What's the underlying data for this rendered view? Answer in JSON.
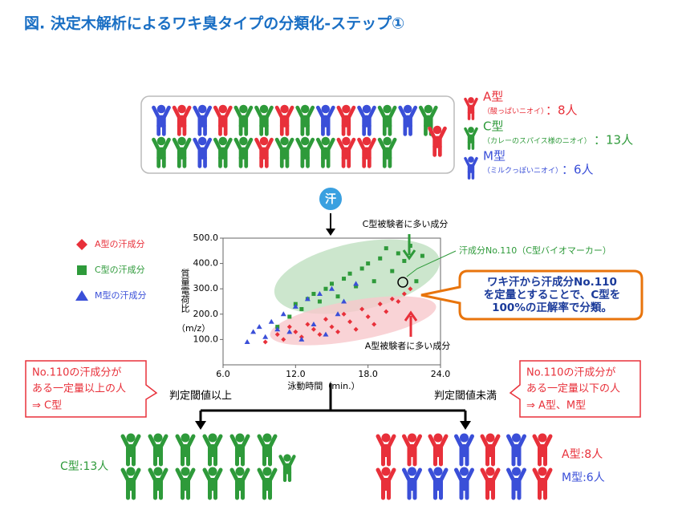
{
  "title": "図. 決定木解析によるワキ臭タイプの分類化-ステップ①",
  "colors": {
    "A": "#e8303a",
    "C": "#2e9a3a",
    "M": "#3a4fd8"
  },
  "population": {
    "row1": [
      "M",
      "A",
      "M",
      "A",
      "C",
      "C",
      "A",
      "C",
      "M",
      "A",
      "M",
      "C",
      "M",
      "C"
    ],
    "row2": [
      "C",
      "C",
      "M",
      "C",
      "C",
      "A",
      "C",
      "C",
      "C",
      "A",
      "A",
      "C"
    ],
    "extra": [
      "A"
    ]
  },
  "groups": [
    {
      "type": "A",
      "label": "A型",
      "desc": "（酸っぱいニオイ）",
      "count": "：8人"
    },
    {
      "type": "C",
      "label": "C型",
      "desc": "（カレーのスパイス様のニオイ）",
      "count": "：13人"
    },
    {
      "type": "M",
      "label": "M型",
      "desc": "（ミルクっぽいニオイ）",
      "count": "：6人"
    }
  ],
  "sweat_badge": "汗",
  "chart_data": {
    "type": "scatter",
    "xlabel": "泳動時間（min.）",
    "ylabel": "質量電荷比",
    "yunit": "（m/z）",
    "xlim": [
      6,
      24
    ],
    "ylim": [
      0,
      500
    ],
    "xticks": [
      {
        "value": 6,
        "label": "6.0"
      },
      {
        "value": 12,
        "label": "12.0"
      },
      {
        "value": 18,
        "label": "18.0"
      },
      {
        "value": 24,
        "label": "24.0"
      }
    ],
    "yticks": [
      {
        "value": 100,
        "label": "100.0"
      },
      {
        "value": 200,
        "label": "200.0"
      },
      {
        "value": 300,
        "label": "300.0"
      },
      {
        "value": 400,
        "label": "400.0"
      },
      {
        "value": 500,
        "label": "500.0"
      }
    ],
    "series": [
      {
        "name": "A型の汗成分",
        "color": "#e8303a",
        "marker": "diamond",
        "x": [
          9.5,
          10.5,
          11,
          11.5,
          12,
          12.5,
          13,
          13.5,
          14,
          14.5,
          15,
          15.5,
          16,
          16.5,
          17,
          17.5,
          18,
          18.5,
          19,
          19.5,
          20,
          20.5,
          21,
          21.5
        ],
        "values": [
          90,
          120,
          100,
          150,
          130,
          110,
          160,
          140,
          120,
          180,
          150,
          130,
          200,
          170,
          140,
          220,
          190,
          160,
          240,
          210,
          260,
          250,
          280,
          300
        ]
      },
      {
        "name": "C型の汗成分",
        "color": "#2e9a3a",
        "marker": "square",
        "x": [
          10.5,
          11.5,
          12,
          12.5,
          13,
          13.5,
          14,
          14.5,
          15,
          15.5,
          16,
          16.5,
          17,
          17.5,
          18,
          18.5,
          19,
          19.5,
          20,
          20.5,
          21,
          21.5,
          22,
          22.5
        ],
        "values": [
          150,
          190,
          240,
          220,
          260,
          280,
          250,
          300,
          320,
          270,
          340,
          360,
          310,
          380,
          400,
          330,
          420,
          460,
          370,
          440,
          410,
          470,
          330,
          430
        ]
      },
      {
        "name": "M型の汗成分",
        "color": "#3a4fd8",
        "marker": "triangle",
        "x": [
          8,
          8.5,
          9,
          9.5,
          10,
          10.5,
          11,
          11.5,
          12,
          12.5,
          13,
          13.5,
          14,
          14.5,
          15,
          15.5,
          16,
          17
        ],
        "values": [
          90,
          130,
          150,
          110,
          170,
          140,
          200,
          130,
          230,
          100,
          260,
          160,
          280,
          120,
          300,
          200,
          250,
          320
        ]
      }
    ],
    "annotations": {
      "c_note": "C型被験者に多い成分",
      "a_note": "A型被験者に多い成分",
      "marker_note": "汗成分No.110（C型バイオマーカー）"
    }
  },
  "callout": [
    "ワキ汗から汗成分No.110",
    "を定量とすることで、C型を",
    "100%の正解率で分類。"
  ],
  "tree": {
    "left_branch": "判定閾値以上",
    "right_branch": "判定閾値未満",
    "left_box": [
      "No.110の汗成分が",
      "ある一定量以上の人",
      "⇒ C型"
    ],
    "right_box": [
      "No.110の汗成分が",
      "ある一定量以下の人",
      "⇒ A型、M型"
    ]
  },
  "results": {
    "left_label": "C型:13人",
    "left_row1": [
      "C",
      "C",
      "C",
      "C",
      "C",
      "C"
    ],
    "left_row2": [
      "C",
      "C",
      "C",
      "C",
      "C",
      "C"
    ],
    "left_extra": [
      "C"
    ],
    "right_row1": [
      "A",
      "A",
      "A",
      "M",
      "A",
      "M",
      "A"
    ],
    "right_row2": [
      "A",
      "M",
      "M",
      "M",
      "A",
      "M",
      "A"
    ],
    "right_a": "A型:8人",
    "right_m": "M型:6人"
  }
}
